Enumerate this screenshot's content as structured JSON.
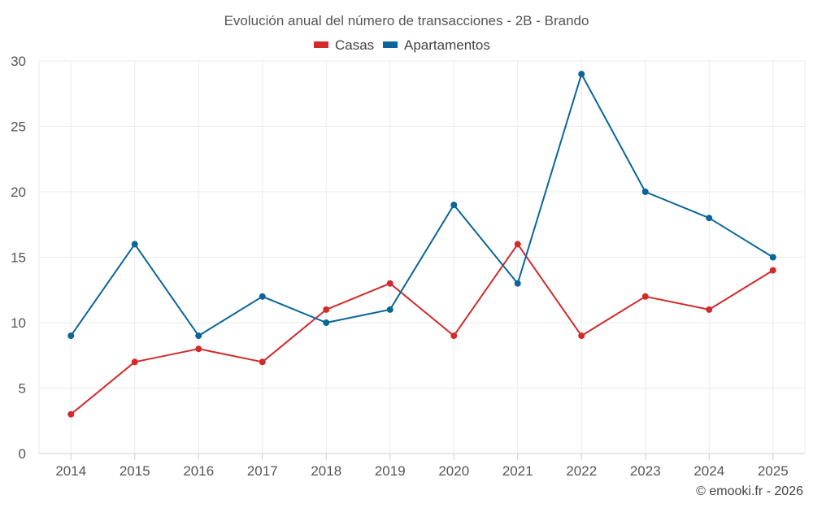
{
  "chart_data": {
    "type": "line",
    "title": "Evolución anual del número de transacciones - 2B - Brando",
    "categories": [
      "2014",
      "2015",
      "2016",
      "2017",
      "2018",
      "2019",
      "2020",
      "2021",
      "2022",
      "2023",
      "2024",
      "2025"
    ],
    "series": [
      {
        "name": "Casas",
        "color": "#d32a2a",
        "values": [
          3,
          7,
          8,
          7,
          11,
          13,
          9,
          16,
          9,
          12,
          11,
          14
        ]
      },
      {
        "name": "Apartamentos",
        "color": "#0a6699",
        "values": [
          9,
          16,
          9,
          12,
          10,
          11,
          19,
          13,
          29,
          20,
          18,
          15
        ]
      }
    ],
    "yticks": [
      0,
      5,
      10,
      15,
      20,
      25,
      30
    ],
    "ylim": [
      0,
      30
    ],
    "xlabel": "",
    "ylabel": "",
    "legend_position": "top-center",
    "grid": true
  },
  "credit": "© emooki.fr - 2026"
}
